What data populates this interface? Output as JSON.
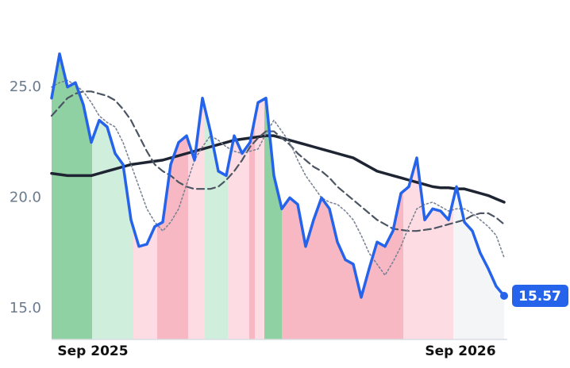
{
  "chart_data": {
    "type": "line",
    "xlim": [
      0,
      57
    ],
    "xticks": [
      {
        "value": 5.2,
        "label": "Sep 2025"
      },
      {
        "value": 51.5,
        "label": "Sep 2026"
      }
    ],
    "ylim": [
      13.6,
      28
    ],
    "yticks": [
      {
        "value": 15,
        "label": "15.0"
      },
      {
        "value": 20,
        "label": "20.0"
      },
      {
        "value": 25,
        "label": "25.0"
      }
    ],
    "regions": [
      {
        "from": 0,
        "to": 5.1,
        "color": "#8fd1a3"
      },
      {
        "from": 5.1,
        "to": 10.3,
        "color": "#cfeedb"
      },
      {
        "from": 10.3,
        "to": 13.3,
        "color": "#fddde3"
      },
      {
        "from": 13.3,
        "to": 17.2,
        "color": "#f8b8c3"
      },
      {
        "from": 17.2,
        "to": 19.3,
        "color": "#fddde3"
      },
      {
        "from": 19.3,
        "to": 22.2,
        "color": "#cfeedb"
      },
      {
        "from": 22.2,
        "to": 24.9,
        "color": "#fddde3"
      },
      {
        "from": 24.9,
        "to": 25.6,
        "color": "#f8b8c3"
      },
      {
        "from": 25.6,
        "to": 26.8,
        "color": "#fddde3"
      },
      {
        "from": 26.8,
        "to": 29,
        "color": "#8fd1a3"
      },
      {
        "from": 29,
        "to": 44.3,
        "color": "#f8b8c3"
      },
      {
        "from": 44.3,
        "to": 50.6,
        "color": "#fddde3"
      },
      {
        "from": 50.6,
        "to": 57,
        "color": "#f4f5f7"
      }
    ],
    "series": [
      {
        "color": "#1e2432",
        "style": "solid",
        "width": 3.5,
        "values": [
          21.1,
          21.05,
          21.0,
          21.0,
          21.0,
          21.0,
          21.1,
          21.2,
          21.3,
          21.4,
          21.5,
          21.55,
          21.6,
          21.65,
          21.7,
          21.8,
          21.9,
          22.0,
          22.1,
          22.2,
          22.3,
          22.4,
          22.5,
          22.6,
          22.65,
          22.7,
          22.75,
          22.8,
          22.8,
          22.7,
          22.6,
          22.5,
          22.4,
          22.3,
          22.2,
          22.1,
          22.0,
          21.9,
          21.8,
          21.6,
          21.4,
          21.2,
          21.1,
          21.0,
          20.9,
          20.8,
          20.7,
          20.6,
          20.5,
          20.45,
          20.45,
          20.4,
          20.4,
          20.3,
          20.2,
          20.1,
          19.95,
          19.8
        ]
      },
      {
        "color": "#4b5563",
        "style": "dashed",
        "width": 2.2,
        "values": [
          23.7,
          24.1,
          24.5,
          24.7,
          24.8,
          24.8,
          24.7,
          24.6,
          24.4,
          24.0,
          23.5,
          22.8,
          22.1,
          21.5,
          21.2,
          21.0,
          20.7,
          20.5,
          20.4,
          20.4,
          20.4,
          20.5,
          20.8,
          21.2,
          21.7,
          22.3,
          22.7,
          23.0,
          23.0,
          22.7,
          22.4,
          22.0,
          21.7,
          21.4,
          21.2,
          20.9,
          20.5,
          20.2,
          19.9,
          19.6,
          19.3,
          19.0,
          18.8,
          18.6,
          18.55,
          18.5,
          18.5,
          18.55,
          18.6,
          18.7,
          18.8,
          18.9,
          19.0,
          19.2,
          19.3,
          19.3,
          19.1,
          18.8
        ]
      },
      {
        "color": "#7b8394",
        "style": "dotted",
        "width": 1.6,
        "values": [
          25.0,
          25.2,
          25.3,
          25.1,
          24.8,
          24.3,
          23.7,
          23.4,
          23.2,
          22.5,
          21.5,
          20.5,
          19.5,
          18.9,
          18.5,
          18.9,
          19.5,
          20.6,
          21.7,
          22.3,
          22.8,
          22.6,
          22.3,
          22.1,
          22.0,
          22.1,
          22.2,
          22.9,
          23.5,
          23.0,
          22.5,
          21.7,
          21.0,
          20.5,
          20.0,
          19.8,
          19.7,
          19.4,
          19.0,
          18.3,
          17.5,
          17.0,
          16.5,
          17.1,
          17.8,
          18.7,
          19.5,
          19.7,
          19.8,
          19.6,
          19.4,
          19.5,
          19.5,
          19.3,
          19.0,
          18.7,
          18.3,
          17.3
        ]
      },
      {
        "color": "#2563eb",
        "style": "solid",
        "width": 3.5,
        "values": [
          24.5,
          26.5,
          25.0,
          25.2,
          24.2,
          22.5,
          23.5,
          23.2,
          22.0,
          21.5,
          19.0,
          17.8,
          17.9,
          18.7,
          18.9,
          21.5,
          22.5,
          22.8,
          21.7,
          24.5,
          23.0,
          21.2,
          21.0,
          22.8,
          22.0,
          22.5,
          24.3,
          24.5,
          21.0,
          19.5,
          20.0,
          19.7,
          17.8,
          19.0,
          20.0,
          19.5,
          18.0,
          17.2,
          17.0,
          15.5,
          16.8,
          18.0,
          17.8,
          18.5,
          20.2,
          20.5,
          21.8,
          19.0,
          19.5,
          19.4,
          19.0,
          20.5,
          18.9,
          18.5,
          17.5,
          16.8,
          16.0,
          15.57
        ]
      }
    ]
  }
}
